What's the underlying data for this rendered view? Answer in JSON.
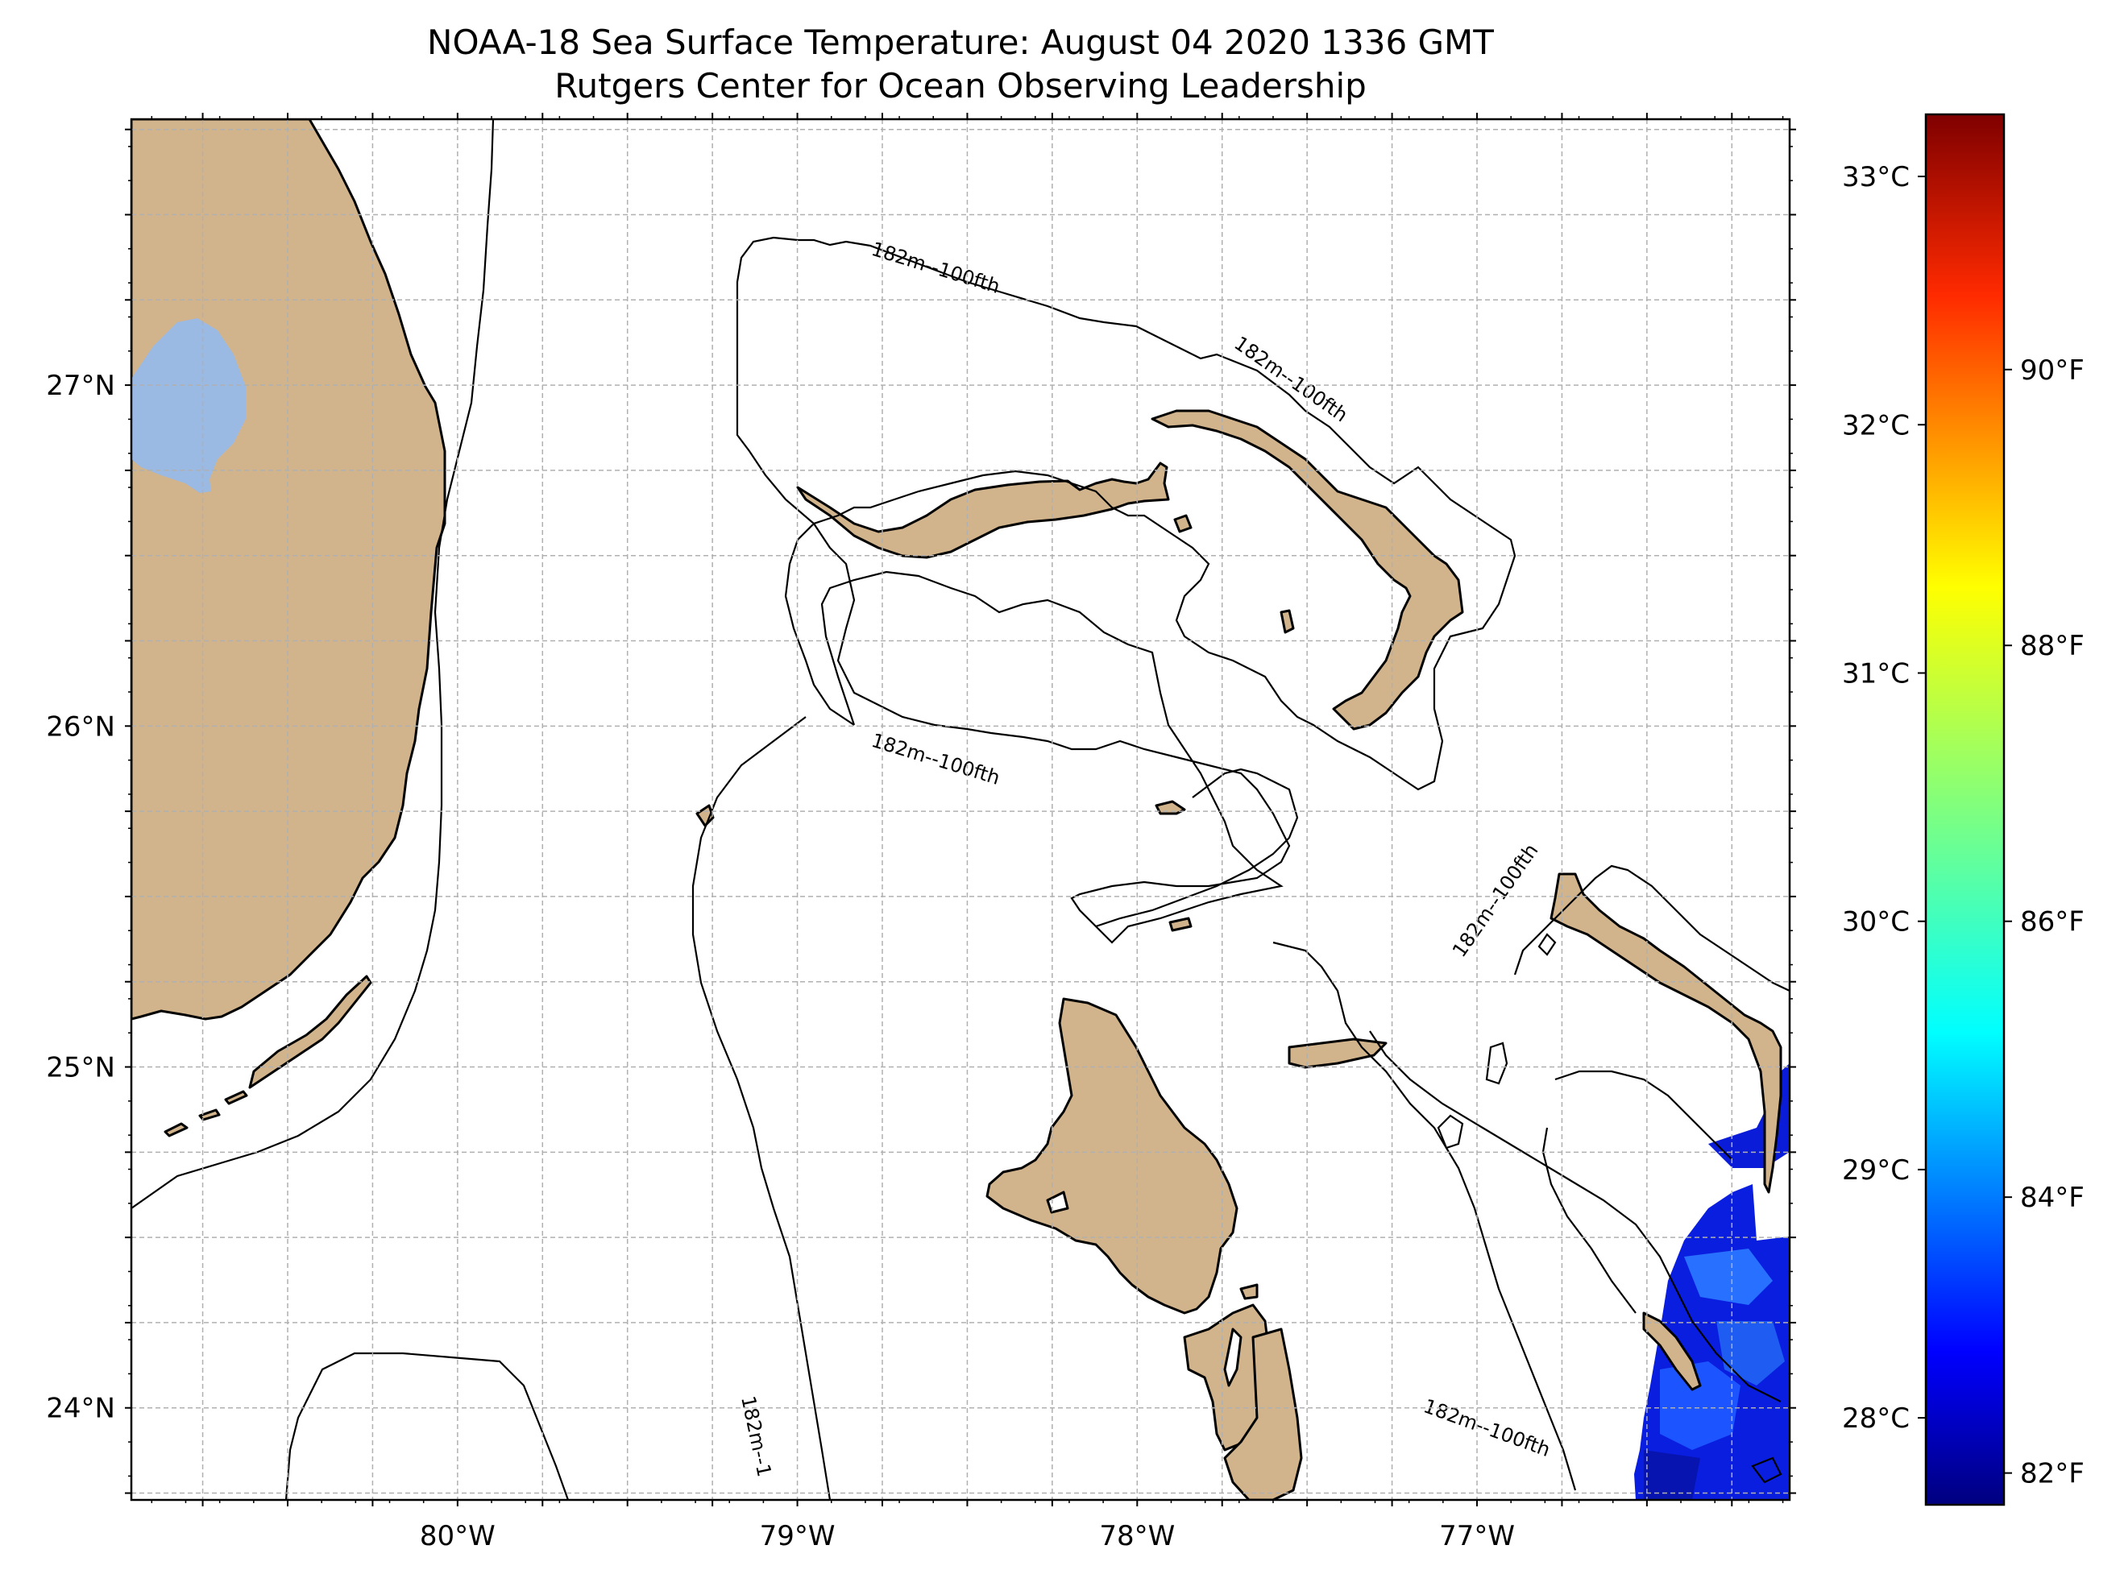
{
  "title": {
    "line1": "NOAA-18 Sea Surface Temperature: August 04 2020 1336 GMT",
    "line2": "Rutgers Center for Ocean Observing Leadership"
  },
  "map": {
    "lon_range": [
      -80.96,
      -76.08
    ],
    "lat_range": [
      23.73,
      27.78
    ],
    "lat_ticks": [
      {
        "value": 27,
        "label": "27°N"
      },
      {
        "value": 26,
        "label": "26°N"
      },
      {
        "value": 25,
        "label": "25°N"
      },
      {
        "value": 24,
        "label": "24°N"
      }
    ],
    "lon_ticks": [
      {
        "value": -80,
        "label": "80°W"
      },
      {
        "value": -79,
        "label": "79°W"
      },
      {
        "value": -78,
        "label": "78°W"
      },
      {
        "value": -77,
        "label": "77°W"
      }
    ],
    "gridlines": "dashed",
    "land_color": "#d2b48c",
    "lake_color": "#9ab9e3",
    "contour_label": "182m--100fth"
  },
  "colorbar": {
    "colormap": "jet",
    "celsius_range": [
      27.65,
      33.25
    ],
    "celsius_labels": [
      "33°C",
      "32°C",
      "31°C",
      "30°C",
      "29°C",
      "28°C"
    ],
    "fahrenheit_labels": [
      "90°F",
      "88°F",
      "86°F",
      "84°F",
      "82°F"
    ],
    "colors": [
      "#00007f",
      "#0000ff",
      "#007fff",
      "#00ffff",
      "#7fff7f",
      "#ffff00",
      "#ff7f00",
      "#ff0000",
      "#7f0000"
    ]
  },
  "sst_data_region": {
    "location": "bottom-right",
    "color": "#0a1ee0"
  }
}
